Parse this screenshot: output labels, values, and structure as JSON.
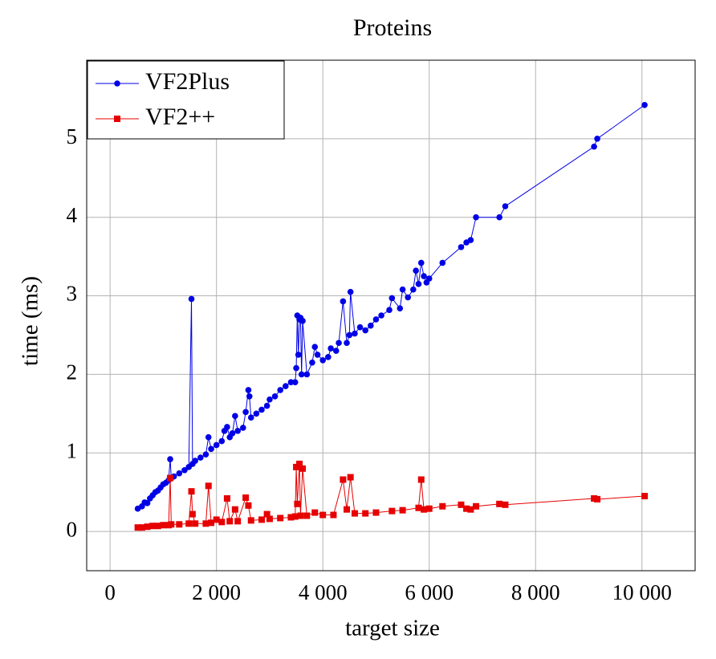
{
  "chart_data": {
    "type": "line",
    "title": "Proteins",
    "xlabel": "target size",
    "ylabel": "time (ms)",
    "xlim": [
      -440,
      11000
    ],
    "ylim": [
      -0.5,
      6
    ],
    "xticks": [
      0,
      {
        "value": 2000,
        "label": "2 000"
      },
      {
        "value": 4000,
        "label": "4 000"
      },
      {
        "value": 6000,
        "label": "6 000"
      },
      {
        "value": 8000,
        "label": "8 000"
      },
      {
        "value": 10000,
        "label": "10 000"
      }
    ],
    "yticks": [
      0,
      1,
      2,
      3,
      4,
      5
    ],
    "grid": true,
    "legend": "upper left",
    "series": [
      {
        "name": "VF2Plus",
        "color": "#0000e6",
        "marker": "circle",
        "x": [
          520,
          600,
          650,
          700,
          750,
          800,
          850,
          900,
          950,
          1000,
          1050,
          1100,
          1130,
          1150,
          1200,
          1300,
          1400,
          1480,
          1530,
          1550,
          1600,
          1700,
          1800,
          1850,
          1900,
          2000,
          2100,
          2150,
          2200,
          2250,
          2300,
          2350,
          2400,
          2500,
          2550,
          2600,
          2620,
          2650,
          2750,
          2850,
          2950,
          3000,
          3100,
          3200,
          3300,
          3400,
          3480,
          3500,
          3520,
          3540,
          3560,
          3580,
          3600,
          3620,
          3700,
          3800,
          3850,
          3900,
          4000,
          4100,
          4150,
          4250,
          4300,
          4380,
          4450,
          4500,
          4520,
          4600,
          4700,
          4800,
          4900,
          5000,
          5100,
          5250,
          5300,
          5450,
          5500,
          5600,
          5700,
          5750,
          5800,
          5850,
          5900,
          5950,
          6000,
          6250,
          6600,
          6700,
          6780,
          6880,
          7320,
          7430,
          9100,
          9160,
          10050
        ],
        "values": [
          0.29,
          0.32,
          0.37,
          0.36,
          0.42,
          0.46,
          0.5,
          0.52,
          0.56,
          0.6,
          0.62,
          0.65,
          0.92,
          0.68,
          0.7,
          0.74,
          0.78,
          0.82,
          2.96,
          0.86,
          0.9,
          0.94,
          0.98,
          1.2,
          1.05,
          1.1,
          1.15,
          1.28,
          1.33,
          1.2,
          1.25,
          1.47,
          1.28,
          1.32,
          1.52,
          1.8,
          1.72,
          1.45,
          1.5,
          1.55,
          1.6,
          1.68,
          1.72,
          1.8,
          1.85,
          1.9,
          1.9,
          2.08,
          2.75,
          2.25,
          2.7,
          2.72,
          2.0,
          2.68,
          2.0,
          2.15,
          2.35,
          2.25,
          2.18,
          2.22,
          2.33,
          2.3,
          2.4,
          2.93,
          2.4,
          2.5,
          3.05,
          2.52,
          2.6,
          2.56,
          2.62,
          2.7,
          2.75,
          2.82,
          2.97,
          2.84,
          3.08,
          2.98,
          3.08,
          3.32,
          3.15,
          3.42,
          3.25,
          3.17,
          3.22,
          3.42,
          3.62,
          3.68,
          3.71,
          4.0,
          4.0,
          4.14,
          4.9,
          5.0,
          5.43
        ]
      },
      {
        "name": "VF2++",
        "color": "#e60000",
        "marker": "square",
        "x": [
          520,
          600,
          700,
          800,
          900,
          1000,
          1100,
          1130,
          1150,
          1300,
          1480,
          1530,
          1550,
          1600,
          1800,
          1850,
          1900,
          2000,
          2100,
          2200,
          2250,
          2350,
          2400,
          2550,
          2600,
          2650,
          2850,
          2950,
          3000,
          3200,
          3400,
          3480,
          3500,
          3520,
          3560,
          3580,
          3620,
          3700,
          3850,
          4000,
          4200,
          4380,
          4450,
          4520,
          4600,
          4800,
          5000,
          5300,
          5500,
          5800,
          5850,
          5900,
          6000,
          6250,
          6600,
          6700,
          6780,
          6880,
          7320,
          7430,
          9100,
          9160,
          10050
        ],
        "values": [
          0.05,
          0.05,
          0.06,
          0.07,
          0.07,
          0.08,
          0.08,
          0.68,
          0.09,
          0.09,
          0.1,
          0.51,
          0.22,
          0.1,
          0.1,
          0.58,
          0.11,
          0.15,
          0.12,
          0.42,
          0.13,
          0.28,
          0.13,
          0.43,
          0.33,
          0.14,
          0.15,
          0.22,
          0.16,
          0.17,
          0.18,
          0.19,
          0.82,
          0.35,
          0.86,
          0.2,
          0.8,
          0.2,
          0.24,
          0.21,
          0.21,
          0.66,
          0.28,
          0.69,
          0.23,
          0.23,
          0.24,
          0.26,
          0.27,
          0.3,
          0.66,
          0.28,
          0.29,
          0.32,
          0.34,
          0.29,
          0.28,
          0.32,
          0.35,
          0.34,
          0.42,
          0.41,
          0.45
        ]
      }
    ]
  }
}
